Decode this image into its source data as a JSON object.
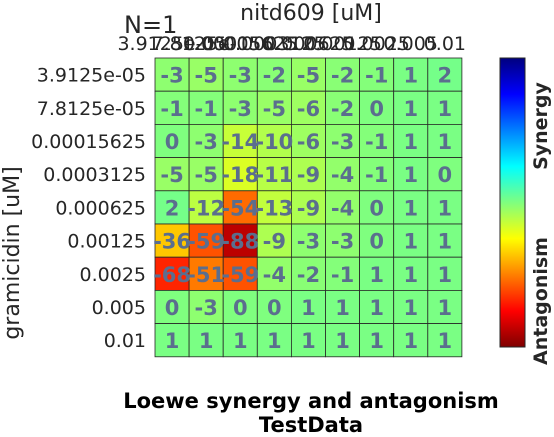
{
  "chart_data": {
    "type": "heatmap",
    "annotation": "N=1",
    "x_axis_title": "nitd609 [uM]",
    "y_axis_title": "gramicidin [uM]",
    "x_tick_labels": [
      "3.9125e-05",
      "7.8125e-05",
      "0.00015625",
      "0.0003125",
      "0.000625",
      "0.00125",
      "0.0025",
      "0.005",
      "0.01"
    ],
    "y_tick_labels": [
      "3.9125e-05",
      "7.8125e-05",
      "0.00015625",
      "0.0003125",
      "0.000625",
      "0.00125",
      "0.0025",
      "0.005",
      "0.01"
    ],
    "values": [
      [
        -3,
        -5,
        -3,
        -2,
        -5,
        -2,
        -1,
        1,
        2
      ],
      [
        -1,
        -1,
        -3,
        -5,
        -6,
        -2,
        0,
        1,
        1
      ],
      [
        0,
        -3,
        -14,
        -10,
        -6,
        -3,
        -1,
        1,
        1
      ],
      [
        -5,
        -5,
        -18,
        -11,
        -9,
        -4,
        -1,
        1,
        0
      ],
      [
        2,
        -12,
        -54,
        -13,
        -9,
        -4,
        0,
        1,
        1
      ],
      [
        -36,
        -59,
        -88,
        -9,
        -3,
        -3,
        0,
        1,
        1
      ],
      [
        -68,
        -51,
        -59,
        -4,
        -2,
        -1,
        1,
        1,
        1
      ],
      [
        0,
        -3,
        0,
        0,
        1,
        1,
        1,
        1,
        1
      ],
      [
        1,
        1,
        1,
        1,
        1,
        1,
        1,
        1,
        1
      ]
    ],
    "color_range": [
      -100,
      100
    ],
    "colormap": "jet",
    "colorbar_labels": {
      "top": "Synergy",
      "bottom": "Antagonism"
    },
    "title_lines": [
      "Loewe synergy and antagonism",
      "TestData"
    ],
    "grid": true
  }
}
